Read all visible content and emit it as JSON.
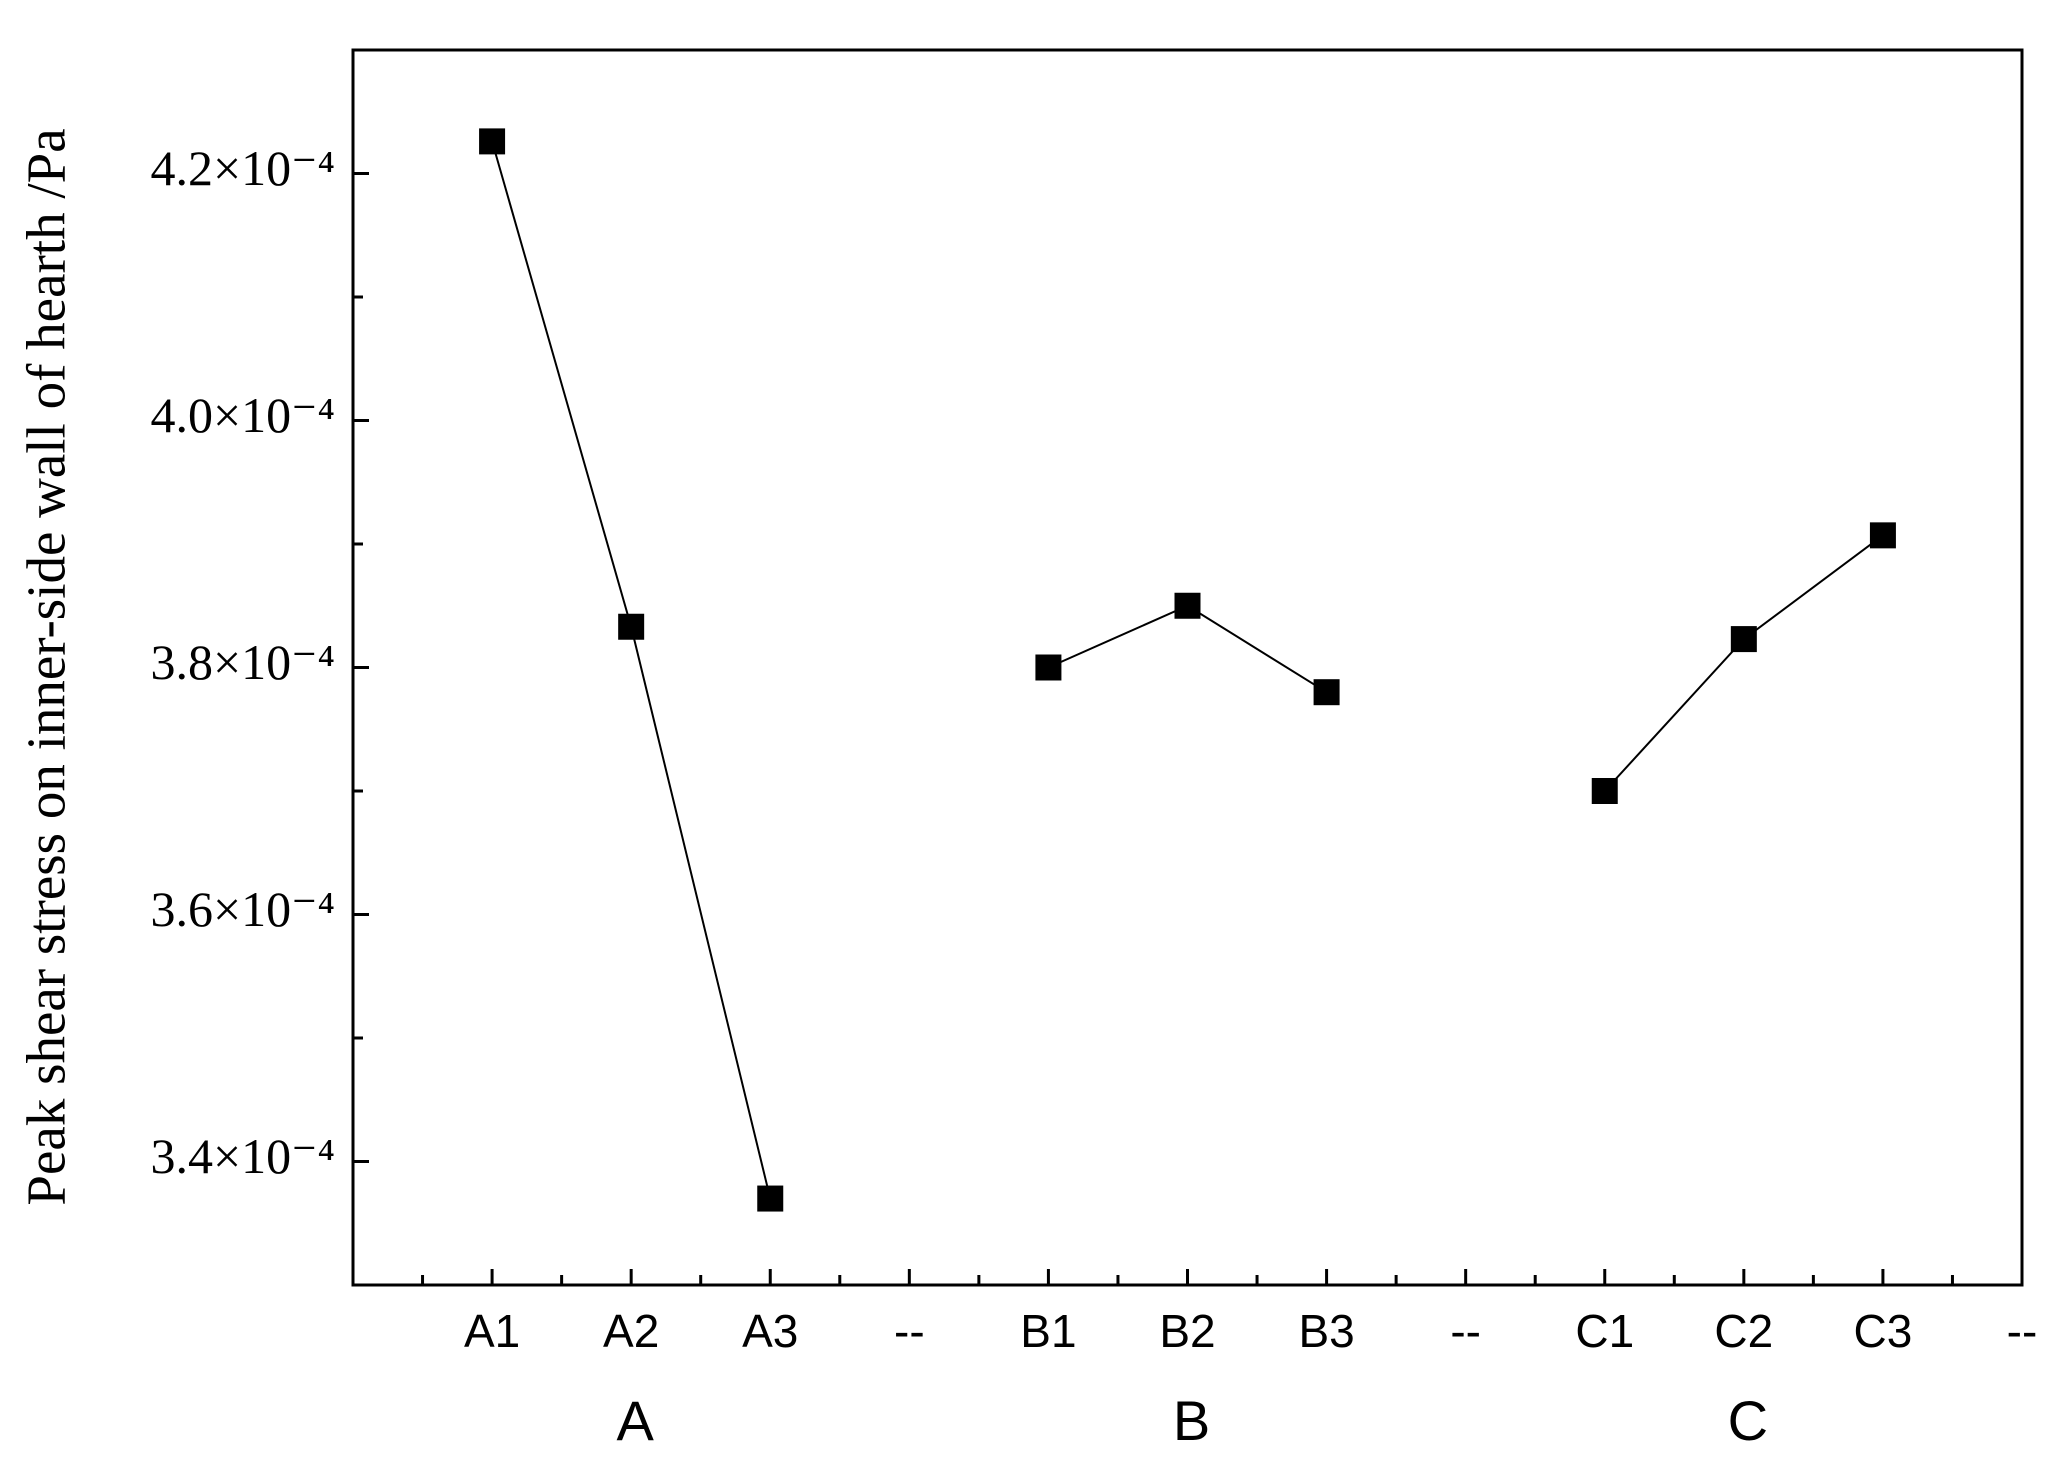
{
  "chart_data": {
    "type": "line",
    "y_label": "Peak shear stress on inner-side wall of hearth /Pa",
    "categories": [
      "A1",
      "A2",
      "A3",
      "--",
      "B1",
      "B2",
      "B3",
      "--",
      "C1",
      "C2",
      "C3",
      "--"
    ],
    "group_labels": [
      "A",
      "B",
      "C"
    ],
    "series": [
      {
        "color": "#000000",
        "values": [
          0.0004226,
          0.0003833,
          0.000337,
          null,
          0.00038,
          0.000385,
          0.000378,
          null,
          0.00037,
          0.0003823,
          0.0003907,
          null
        ]
      }
    ],
    "ylim": [
      0.00033,
      0.00043
    ],
    "yticks": [
      {
        "value": 0.00034,
        "label": "3.4×10⁻⁴"
      },
      {
        "value": 0.00036,
        "label": "3.6×10⁻⁴"
      },
      {
        "value": 0.00038,
        "label": "3.8×10⁻⁴"
      },
      {
        "value": 0.0004,
        "label": "4.0×10⁻⁴"
      },
      {
        "value": 0.00042,
        "label": "4.2×10⁻⁴"
      }
    ],
    "y_minor_ticks": [
      0.00035,
      0.00037,
      0.00039,
      0.00041
    ],
    "grid": false
  }
}
